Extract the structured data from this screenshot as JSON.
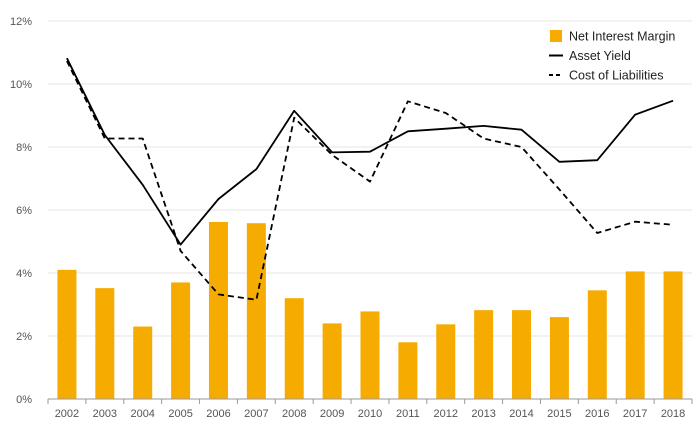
{
  "chart_data": {
    "type": "bar",
    "categories": [
      "2002",
      "2003",
      "2004",
      "2005",
      "2006",
      "2007",
      "2008",
      "2009",
      "2010",
      "2011",
      "2012",
      "2013",
      "2014",
      "2015",
      "2016",
      "2017",
      "2018"
    ],
    "series": [
      {
        "name": "Net Interest Margin",
        "type": "bar",
        "color": "#f5ab00",
        "values": [
          4.1,
          3.52,
          2.3,
          3.7,
          5.62,
          5.58,
          3.2,
          2.4,
          2.78,
          1.8,
          2.37,
          2.82,
          2.82,
          2.6,
          3.45,
          4.05,
          4.05
        ]
      },
      {
        "name": "Asset Yield",
        "type": "line",
        "style": "solid",
        "color": "#000000",
        "values": [
          10.82,
          8.38,
          6.8,
          4.9,
          6.35,
          7.3,
          9.15,
          7.83,
          7.85,
          8.5,
          8.58,
          8.67,
          8.55,
          7.53,
          7.58,
          9.03,
          9.47
        ]
      },
      {
        "name": "Cost of Liabilities",
        "type": "line",
        "style": "dashed",
        "color": "#000000",
        "values": [
          10.73,
          8.27,
          8.27,
          4.7,
          3.32,
          3.15,
          8.93,
          7.75,
          6.9,
          9.45,
          9.08,
          8.27,
          8.0,
          6.65,
          5.27,
          5.63,
          5.53
        ]
      }
    ],
    "yticks": [
      "0%",
      "2%",
      "4%",
      "6%",
      "8%",
      "10%",
      "12%"
    ],
    "ylim": [
      0,
      12
    ],
    "title": "",
    "xlabel": "",
    "ylabel": "",
    "grid": "horizontal",
    "legend_position": "top-right",
    "gridline_color": "#e6e6e6"
  }
}
